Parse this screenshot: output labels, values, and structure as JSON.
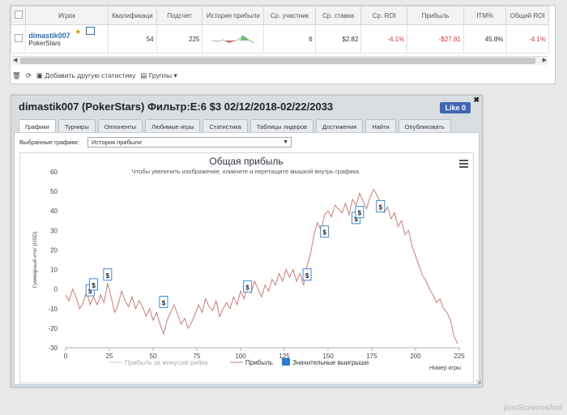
{
  "table": {
    "headers": [
      "Игрок",
      "Квалификаци",
      "Подсчет",
      "История прибыли",
      "Ср. участник",
      "Ср. ставка",
      "Ср. ROI",
      "Прибыль",
      "ITM%",
      "Общий ROI"
    ],
    "row": {
      "player_name": "dimastik007",
      "player_room": "PokerStars",
      "qualified": "54",
      "count": "225",
      "avg_entrants": "6",
      "avg_stake": "$2.82",
      "avg_roi": "-4.1%",
      "profit": "-$27.81",
      "itm": "45.8%",
      "total_roi": "-4.1%"
    }
  },
  "toolbar": {
    "add_stat": "Добавить другую статистику",
    "groups": "Группы"
  },
  "widget": {
    "title": "dimastik007 (PokerStars) Фильтр:E:6 $3 02/12/2018-02/22/2033",
    "like": "Like 0",
    "tabs": [
      "Графики",
      "Турниры",
      "Оппоненты",
      "Любимые игры",
      "Статистика",
      "Таблицы лидеров",
      "Достижения",
      "Найти",
      "Опубликовать"
    ],
    "select_label": "Выбранные графики:",
    "select_value": "История прибыли"
  },
  "chart_data": {
    "type": "line",
    "title": "Общая прибыль",
    "subtitle": "Чтобы увеличить изображение, кликните и перетащите мышкой внутрь графика.",
    "ylabel": "Суммарный итог (USD)",
    "xlabel": "Номер игры",
    "xlim": [
      0,
      225
    ],
    "ylim": [
      -30,
      60
    ],
    "xticks": [
      0,
      25,
      50,
      75,
      100,
      125,
      150,
      175,
      200,
      225
    ],
    "yticks": [
      60,
      50,
      40,
      30,
      20,
      10,
      0,
      -10,
      -20,
      -30
    ],
    "legend": [
      "Прибыль за минусом рейка",
      "Прибыль",
      "Значительные выигрыши"
    ],
    "line_color": "#c97a7a",
    "significant_color": "#2e7bcf",
    "series": [
      {
        "name": "Прибыль",
        "points": [
          [
            0,
            -3
          ],
          [
            2,
            -6
          ],
          [
            4,
            0
          ],
          [
            6,
            -4
          ],
          [
            8,
            -10
          ],
          [
            10,
            -7
          ],
          [
            12,
            -1
          ],
          [
            14,
            -8
          ],
          [
            16,
            -4
          ],
          [
            18,
            -8
          ],
          [
            20,
            -3
          ],
          [
            22,
            -7
          ],
          [
            24,
            3
          ],
          [
            26,
            -4
          ],
          [
            28,
            -12
          ],
          [
            30,
            -8
          ],
          [
            32,
            -1
          ],
          [
            34,
            -6
          ],
          [
            36,
            -9
          ],
          [
            38,
            -4
          ],
          [
            40,
            -10
          ],
          [
            42,
            -6
          ],
          [
            44,
            -9
          ],
          [
            46,
            -14
          ],
          [
            48,
            -10
          ],
          [
            50,
            -16
          ],
          [
            52,
            -12
          ],
          [
            54,
            -18
          ],
          [
            56,
            -23
          ],
          [
            58,
            -16
          ],
          [
            60,
            -12
          ],
          [
            62,
            -8
          ],
          [
            64,
            -13
          ],
          [
            66,
            -18
          ],
          [
            68,
            -15
          ],
          [
            70,
            -20
          ],
          [
            72,
            -17
          ],
          [
            74,
            -13
          ],
          [
            76,
            -8
          ],
          [
            78,
            -12
          ],
          [
            80,
            -5
          ],
          [
            82,
            -9
          ],
          [
            84,
            -11
          ],
          [
            86,
            -6
          ],
          [
            88,
            -14
          ],
          [
            90,
            -10
          ],
          [
            92,
            -7
          ],
          [
            94,
            -10
          ],
          [
            96,
            -4
          ],
          [
            98,
            -8
          ],
          [
            100,
            -1
          ],
          [
            102,
            -5
          ],
          [
            104,
            3
          ],
          [
            106,
            -2
          ],
          [
            108,
            4
          ],
          [
            110,
            0
          ],
          [
            112,
            -4
          ],
          [
            114,
            2
          ],
          [
            116,
            -1
          ],
          [
            118,
            5
          ],
          [
            120,
            2
          ],
          [
            122,
            8
          ],
          [
            124,
            4
          ],
          [
            126,
            10
          ],
          [
            128,
            6
          ],
          [
            130,
            10
          ],
          [
            132,
            4
          ],
          [
            134,
            8
          ],
          [
            136,
            2
          ],
          [
            138,
            12
          ],
          [
            140,
            18
          ],
          [
            142,
            28
          ],
          [
            144,
            34
          ],
          [
            146,
            30
          ],
          [
            148,
            38
          ],
          [
            150,
            40
          ],
          [
            152,
            37
          ],
          [
            154,
            43
          ],
          [
            156,
            41
          ],
          [
            158,
            39
          ],
          [
            160,
            44
          ],
          [
            162,
            38
          ],
          [
            164,
            46
          ],
          [
            166,
            43
          ],
          [
            168,
            49
          ],
          [
            170,
            45
          ],
          [
            172,
            41
          ],
          [
            174,
            47
          ],
          [
            176,
            51
          ],
          [
            178,
            48
          ],
          [
            180,
            44
          ],
          [
            182,
            39
          ],
          [
            184,
            42
          ],
          [
            186,
            36
          ],
          [
            188,
            39
          ],
          [
            190,
            32
          ],
          [
            192,
            35
          ],
          [
            194,
            28
          ],
          [
            196,
            30
          ],
          [
            198,
            22
          ],
          [
            200,
            17
          ],
          [
            202,
            12
          ],
          [
            204,
            7
          ],
          [
            206,
            4
          ],
          [
            208,
            0
          ],
          [
            210,
            -3
          ],
          [
            212,
            -7
          ],
          [
            214,
            -5
          ],
          [
            216,
            -10
          ],
          [
            218,
            -12
          ],
          [
            220,
            -16
          ],
          [
            222,
            -24
          ],
          [
            224,
            -28
          ]
        ]
      }
    ],
    "significant_wins": [
      [
        14,
        -1
      ],
      [
        16,
        2
      ],
      [
        24,
        7
      ],
      [
        56,
        -7
      ],
      [
        104,
        1
      ],
      [
        138,
        7
      ],
      [
        148,
        29
      ],
      [
        166,
        36
      ],
      [
        168,
        39
      ],
      [
        180,
        42
      ]
    ]
  }
}
